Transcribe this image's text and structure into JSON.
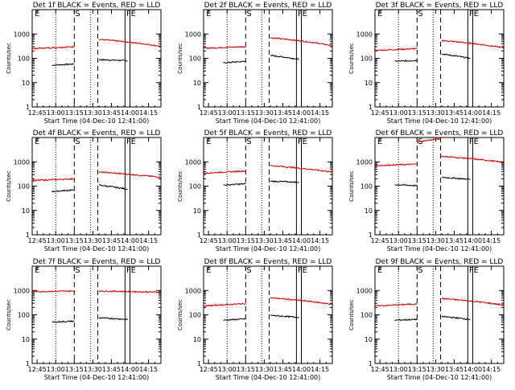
{
  "x_axis": {
    "label": "Start Time (04-Dec-10 12:41:00)",
    "ticks": [
      "12:45",
      "13:00",
      "13:15",
      "13:30",
      "13:45",
      "14:00",
      "14:15"
    ],
    "tick_minutes": [
      4,
      19,
      34,
      49,
      64,
      79,
      94
    ],
    "range_minutes": [
      0,
      104
    ]
  },
  "y_axis": {
    "label": "Counts/sec",
    "scale": "log",
    "ticks": [
      "1",
      "10",
      "100",
      "1000"
    ],
    "tick_values": [
      1,
      10,
      100,
      1000
    ]
  },
  "panel_markers": {
    "E": "E",
    "S": "S",
    "FE": "FE"
  },
  "event_lines": {
    "dotted_minutes": [
      19,
      47
    ],
    "dashed_minutes": [
      34,
      53
    ],
    "solid_minutes": [
      75,
      79
    ],
    "marker_minutes": {
      "E": 2,
      "S": 34,
      "FE": 76
    }
  },
  "colors": {
    "events": "#000000",
    "lld": "#cc0000"
  },
  "chart_data": [
    {
      "type": "line",
      "title": "Det 1f BLACK = Events, RED = LLD",
      "series": [
        {
          "color": "black",
          "segments": [
            {
              "x": [
                16,
                34
              ],
              "y0": 52,
              "y1": 58
            },
            {
              "x": [
                54,
                77
              ],
              "y0": 88,
              "y1": 80
            }
          ]
        },
        {
          "color": "red",
          "segments": [
            {
              "x": [
                0,
                34
              ],
              "y0": 250,
              "y1": 300
            },
            {
              "x": [
                54,
                104
              ],
              "y0": 600,
              "y1": 310
            }
          ]
        }
      ]
    },
    {
      "type": "line",
      "title": "Det 2f BLACK = Events, RED = LLD",
      "series": [
        {
          "color": "black",
          "segments": [
            {
              "x": [
                16,
                34
              ],
              "y0": 65,
              "y1": 75
            },
            {
              "x": [
                54,
                77
              ],
              "y0": 130,
              "y1": 92
            }
          ]
        },
        {
          "color": "red",
          "segments": [
            {
              "x": [
                0,
                34
              ],
              "y0": 260,
              "y1": 300
            },
            {
              "x": [
                54,
                104
              ],
              "y0": 700,
              "y1": 330
            }
          ]
        }
      ]
    },
    {
      "type": "line",
      "title": "Det 3f BLACK = Events, RED = LLD",
      "series": [
        {
          "color": "black",
          "segments": [
            {
              "x": [
                16,
                34
              ],
              "y0": 75,
              "y1": 82
            },
            {
              "x": [
                54,
                77
              ],
              "y0": 150,
              "y1": 98
            }
          ]
        },
        {
          "color": "red",
          "segments": [
            {
              "x": [
                0,
                34
              ],
              "y0": 210,
              "y1": 250
            },
            {
              "x": [
                54,
                104
              ],
              "y0": 540,
              "y1": 270
            }
          ]
        }
      ]
    },
    {
      "type": "line",
      "title": "Det 4f BLACK = Events, RED = LLD",
      "series": [
        {
          "color": "black",
          "segments": [
            {
              "x": [
                16,
                34
              ],
              "y0": 60,
              "y1": 70
            },
            {
              "x": [
                54,
                77
              ],
              "y0": 110,
              "y1": 75
            }
          ]
        },
        {
          "color": "red",
          "segments": [
            {
              "x": [
                0,
                34
              ],
              "y0": 170,
              "y1": 200
            },
            {
              "x": [
                54,
                104
              ],
              "y0": 380,
              "y1": 230
            }
          ]
        }
      ]
    },
    {
      "type": "line",
      "title": "Det 5f BLACK = Events, RED = LLD",
      "series": [
        {
          "color": "black",
          "segments": [
            {
              "x": [
                16,
                34
              ],
              "y0": 110,
              "y1": 125
            },
            {
              "x": [
                54,
                77
              ],
              "y0": 160,
              "y1": 145
            }
          ]
        },
        {
          "color": "red",
          "segments": [
            {
              "x": [
                0,
                34
              ],
              "y0": 340,
              "y1": 420
            },
            {
              "x": [
                54,
                104
              ],
              "y0": 700,
              "y1": 380
            }
          ]
        }
      ]
    },
    {
      "type": "line",
      "title": "Det 6f BLACK = Events, RED = LLD",
      "series": [
        {
          "color": "black",
          "segments": [
            {
              "x": [
                16,
                34
              ],
              "y0": 115,
              "y1": 105
            },
            {
              "x": [
                54,
                77
              ],
              "y0": 230,
              "y1": 190
            }
          ]
        },
        {
          "color": "red",
          "segments": [
            {
              "x": [
                0,
                34
              ],
              "y0": 700,
              "y1": 800
            },
            {
              "x": [
                34,
                53
              ],
              "y0": 6500,
              "y1": 9000
            },
            {
              "x": [
                53,
                104
              ],
              "y0": 1700,
              "y1": 950
            }
          ]
        }
      ]
    },
    {
      "type": "line",
      "title": "Det 7f BLACK = Events, RED = LLD",
      "series": [
        {
          "color": "black",
          "segments": [
            {
              "x": [
                16,
                34
              ],
              "y0": 50,
              "y1": 55
            },
            {
              "x": [
                54,
                77
              ],
              "y0": 75,
              "y1": 65
            }
          ]
        },
        {
          "color": "red",
          "segments": [
            {
              "x": [
                0,
                34
              ],
              "y0": 900,
              "y1": 950
            },
            {
              "x": [
                54,
                104
              ],
              "y0": 950,
              "y1": 850
            }
          ]
        }
      ]
    },
    {
      "type": "line",
      "title": "Det 8f BLACK = Events, RED = LLD",
      "series": [
        {
          "color": "black",
          "segments": [
            {
              "x": [
                16,
                34
              ],
              "y0": 60,
              "y1": 68
            },
            {
              "x": [
                54,
                77
              ],
              "y0": 95,
              "y1": 78
            }
          ]
        },
        {
          "color": "red",
          "segments": [
            {
              "x": [
                0,
                34
              ],
              "y0": 230,
              "y1": 290
            },
            {
              "x": [
                54,
                104
              ],
              "y0": 500,
              "y1": 270
            }
          ]
        }
      ]
    },
    {
      "type": "line",
      "title": "Det 9f BLACK = Events, RED = LLD",
      "series": [
        {
          "color": "black",
          "segments": [
            {
              "x": [
                16,
                34
              ],
              "y0": 60,
              "y1": 65
            },
            {
              "x": [
                54,
                77
              ],
              "y0": 85,
              "y1": 65
            }
          ]
        },
        {
          "color": "red",
          "segments": [
            {
              "x": [
                0,
                34
              ],
              "y0": 230,
              "y1": 280
            },
            {
              "x": [
                54,
                104
              ],
              "y0": 470,
              "y1": 250
            }
          ]
        }
      ]
    }
  ]
}
